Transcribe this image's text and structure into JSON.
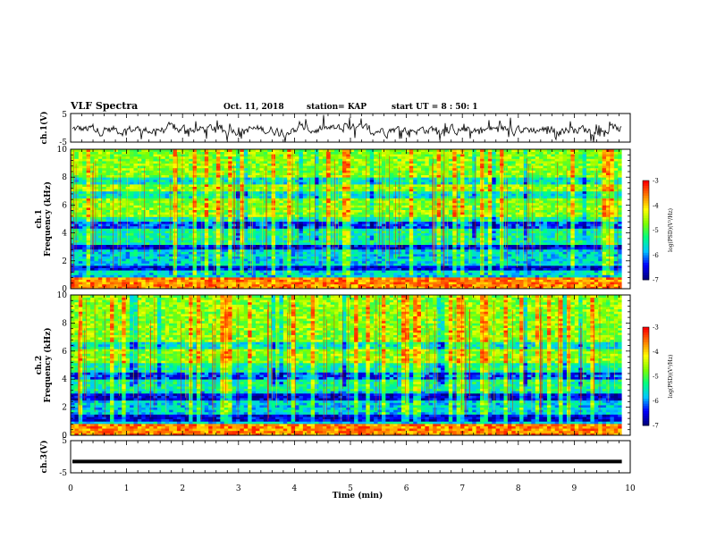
{
  "header": {
    "title": "VLF Spectra",
    "date": "Oct. 11, 2018",
    "station": "station= KAP",
    "start": "start UT =  8 : 50: 1"
  },
  "chart_data": [
    {
      "type": "line",
      "ylabel": "ch.1(V)",
      "ylim": [
        -5,
        5
      ],
      "yticks": [
        "5",
        "-5"
      ],
      "xlim": [
        0,
        10
      ],
      "grid": false
    },
    {
      "type": "heatmap",
      "ylabel": "ch.1\nFrequency (kHz)",
      "ylim": [
        0,
        10
      ],
      "yticks": [
        "0",
        "2",
        "4",
        "6",
        "8",
        "10"
      ],
      "xlim": [
        0,
        10
      ],
      "colorbar": {
        "label": "log(PSD)(V²/Hz)",
        "range": [
          -7,
          -3
        ],
        "ticks": [
          "-3",
          "-4",
          "-5",
          "-6",
          "-7"
        ]
      }
    },
    {
      "type": "heatmap",
      "ylabel": "ch.2\nFrequency (kHz)",
      "ylim": [
        0,
        10
      ],
      "yticks": [
        "0",
        "2",
        "4",
        "6",
        "8",
        "10"
      ],
      "xlim": [
        0,
        10
      ],
      "colorbar": {
        "label": "log(PSD)(V²/Hz)",
        "range": [
          -7,
          -3
        ],
        "ticks": [
          "-3",
          "-4",
          "-5",
          "-6",
          "-7"
        ]
      }
    },
    {
      "type": "line",
      "ylabel": "ch.3(V)",
      "ylim": [
        -5,
        5
      ],
      "yticks": [
        "5",
        "-5"
      ],
      "xlim": [
        0,
        10
      ],
      "value": -1.5
    }
  ],
  "xaxis": {
    "label": "Time (min)",
    "range": [
      0,
      10
    ],
    "ticks": [
      "0",
      "1",
      "2",
      "3",
      "4",
      "5",
      "6",
      "7",
      "8",
      "9",
      "10"
    ]
  },
  "colors": {
    "line": "#000000",
    "colormap": [
      "#000080",
      "#0000ff",
      "#00c8ff",
      "#00ff80",
      "#80ff00",
      "#ffff00",
      "#ff8000",
      "#ff0000",
      "#ffffff"
    ]
  }
}
